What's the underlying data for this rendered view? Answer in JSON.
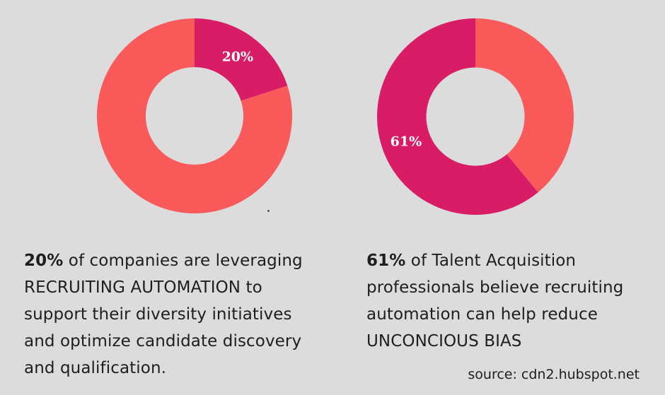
{
  "colors": {
    "coral": "#fa5a5a",
    "magenta": "#d81c65",
    "background": "#dcdcdc",
    "label": "#ffffff"
  },
  "chart_data": [
    {
      "type": "pie",
      "variant": "donut",
      "slices": [
        {
          "label": "20%",
          "value": 20,
          "color": "#d81c65"
        },
        {
          "label": "",
          "value": 80,
          "color": "#fa5a5a"
        }
      ]
    },
    {
      "type": "pie",
      "variant": "donut",
      "slices": [
        {
          "label": "",
          "value": 39,
          "color": "#fa5a5a"
        },
        {
          "label": "61%",
          "value": 61,
          "color": "#d81c65"
        }
      ]
    }
  ],
  "captions": {
    "left": {
      "highlight": "20%",
      "lines": [
        " of companies are leveraging",
        "RECRUITING AUTOMATION to",
        "support their diversity initiatives",
        "and optimize candidate discovery",
        "and qualification."
      ]
    },
    "right": {
      "highlight": "61%",
      "lines": [
        " of Talent Acquisition",
        "professionals believe recruiting",
        "automation can help reduce",
        "UNCONCIOUS BIAS"
      ]
    }
  },
  "source": "source: cdn2.hubspot.net"
}
